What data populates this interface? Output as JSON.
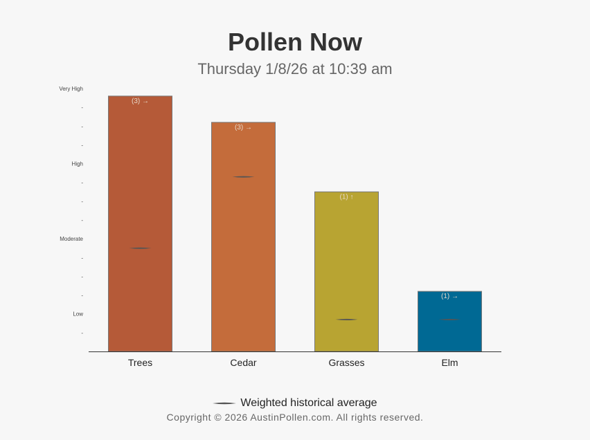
{
  "header": {
    "title": "Pollen Now",
    "subtitle": "Thursday 1/8/26 at 10:39 am"
  },
  "legend": {
    "label": "Weighted historical average"
  },
  "footer": {
    "copyright": "Copyright © 2026 AustinPollen.com.  All rights reserved."
  },
  "chart_data": {
    "type": "bar",
    "categories": [
      "Trees",
      "Cedar",
      "Grasses",
      "Elm"
    ],
    "values": [
      13.6,
      12.2,
      8.5,
      3.2
    ],
    "historical_average": [
      5.5,
      9.3,
      1.7,
      1.7
    ],
    "bar_labels": [
      "(3) →",
      "(3) →",
      "(1) ↑",
      "(1) →"
    ],
    "colors": [
      "#b55a38",
      "#c46c3b",
      "#b8a432",
      "#006994"
    ],
    "ylim": [
      0,
      14
    ],
    "y_ticks": [
      {
        "value": 1,
        "label": "-"
      },
      {
        "value": 2,
        "label": "Low"
      },
      {
        "value": 3,
        "label": "-"
      },
      {
        "value": 4,
        "label": "-"
      },
      {
        "value": 5,
        "label": "-"
      },
      {
        "value": 6,
        "label": "Moderate"
      },
      {
        "value": 7,
        "label": "-"
      },
      {
        "value": 8,
        "label": "-"
      },
      {
        "value": 9,
        "label": "-"
      },
      {
        "value": 10,
        "label": "High"
      },
      {
        "value": 11,
        "label": "-"
      },
      {
        "value": 12,
        "label": "-"
      },
      {
        "value": 13,
        "label": "-"
      },
      {
        "value": 14,
        "label": "Very High"
      }
    ],
    "grid": false
  }
}
